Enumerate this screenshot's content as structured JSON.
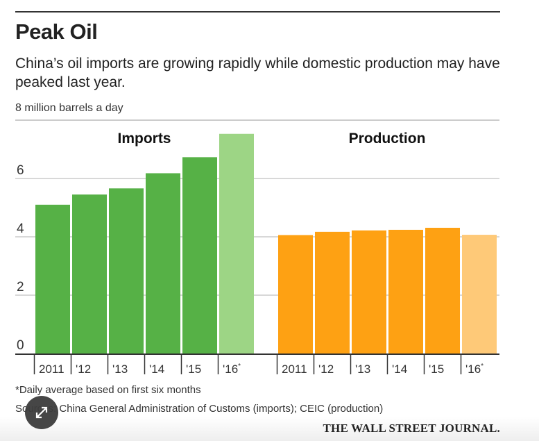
{
  "header": {
    "title": "Peak Oil",
    "subtitle": "China’s oil imports are growing rapidly while domestic production may have peaked last year.",
    "unit_label": "8 million barrels a day"
  },
  "chart_data": [
    {
      "type": "bar",
      "title": "Imports",
      "categories": [
        "2011",
        "'12",
        "'13",
        "'14",
        "'15",
        "'16*"
      ],
      "values": [
        5.1,
        5.45,
        5.66,
        6.18,
        6.73,
        7.53
      ],
      "colors": [
        "#56b146",
        "#56b146",
        "#56b146",
        "#56b146",
        "#56b146",
        "#9dd585"
      ],
      "ylabel": "million barrels a day",
      "ylim": [
        0,
        8
      ],
      "yticks": [
        "0",
        "2",
        "4",
        "6"
      ],
      "grid": true
    },
    {
      "type": "bar",
      "title": "Production",
      "categories": [
        "2011",
        "'12",
        "'13",
        "'14",
        "'15",
        "'16*"
      ],
      "values": [
        4.06,
        4.17,
        4.22,
        4.24,
        4.31,
        4.07
      ],
      "colors": [
        "#fea113",
        "#fea113",
        "#fea113",
        "#fea113",
        "#fea113",
        "#fec978"
      ],
      "ylim": [
        0,
        8
      ],
      "grid": true
    }
  ],
  "footer": {
    "note": "*Daily average based on first six months",
    "source": "Sources: China General Administration of Customs (imports); CEIC (production)",
    "brand": "THE WALL STREET JOURNAL."
  },
  "icons": {
    "expand": "expand-icon"
  }
}
